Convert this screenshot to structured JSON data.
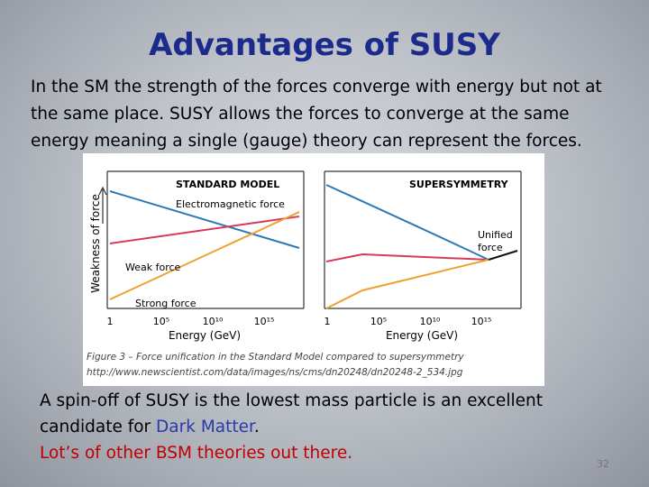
{
  "title": "Advantages of SUSY",
  "intro": "In the SM the strength of the forces converge with energy but not at the same place. SUSY allows the forces to converge at the same energy meaning a single (gauge) theory can represent the forces.",
  "figure": {
    "panels": [
      {
        "title": "STANDARD MODEL",
        "labels": [
          "Electromagnetic force",
          "Weak force",
          "Strong force"
        ]
      },
      {
        "title": "SUPERSYMMETRY",
        "labels": [
          "Unified",
          "force"
        ]
      }
    ],
    "y_axis": "Weakness of force",
    "x_axis": "Energy (GeV)",
    "x_ticks": [
      "1",
      "10⁵",
      "10¹⁰",
      "10¹⁵"
    ],
    "caption": "Figure 3 – Force unification in the Standard Model compared to supersymmetry",
    "source": "http://www.newscientist.com/data/images/ns/cms/dn20248/dn20248-2_534.jpg"
  },
  "conclusion": {
    "text": "A spin-off of SUSY is the lowest mass particle is an excellent candidate for ",
    "highlight": "Dark Matter",
    "end": "."
  },
  "note": "Lot’s of other BSM theories out there.",
  "page_number": "32"
}
